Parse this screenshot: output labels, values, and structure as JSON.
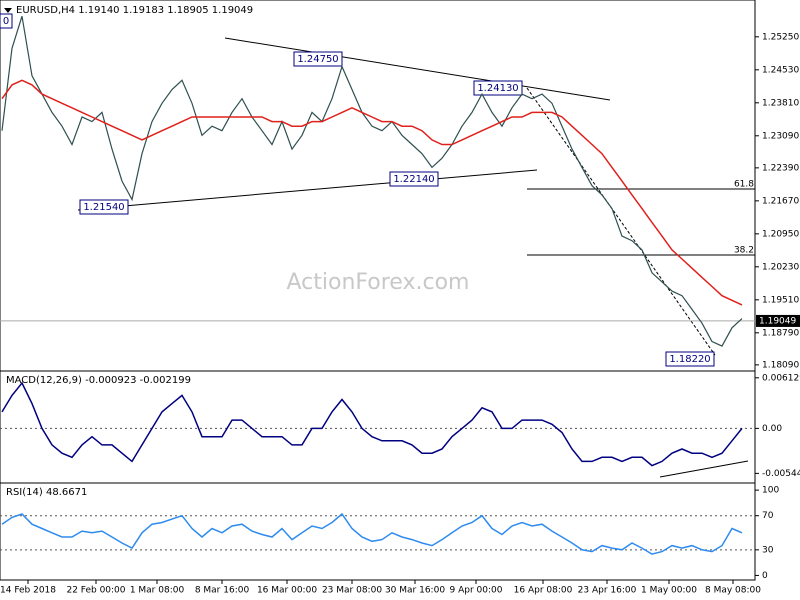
{
  "header": "EURUSD,H4  1.19140 1.19183 1.18905 1.19049",
  "watermark": "ActionForex.com",
  "chart_data": [
    {
      "type": "line",
      "name": "price",
      "current_label": "1.19049",
      "current": 1.19049,
      "annotations": [
        "1.24750",
        "1.24130",
        "1.22140",
        "1.21540",
        "1.18220",
        "0",
        "61.8",
        "38.2"
      ],
      "ylim": [
        1.18,
        1.2601
      ],
      "yticks": [
        {
          "value": 1.2525,
          "label": "1.25250"
        },
        {
          "value": 1.2453,
          "label": "1.24530"
        },
        {
          "value": 1.2381,
          "label": "1.23810"
        },
        {
          "value": 1.2309,
          "label": "1.23090"
        },
        {
          "value": 1.2239,
          "label": "1.22390"
        },
        {
          "value": 1.2167,
          "label": "1.21670"
        },
        {
          "value": 1.2095,
          "label": "1.20950"
        },
        {
          "value": 1.2023,
          "label": "1.20230"
        },
        {
          "value": 1.1951,
          "label": "1.19510"
        },
        {
          "value": 1.1879,
          "label": "1.18790"
        },
        {
          "value": 1.1809,
          "label": "1.18090"
        }
      ],
      "series": [
        {
          "color": "#2f4f4f",
          "values": [
            1.232,
            1.25,
            1.257,
            1.244,
            1.24,
            1.236,
            1.233,
            1.229,
            1.235,
            1.234,
            1.236,
            1.228,
            1.221,
            1.217,
            1.227,
            1.234,
            1.238,
            1.241,
            1.243,
            1.238,
            1.231,
            1.233,
            1.232,
            1.236,
            1.239,
            1.235,
            1.232,
            1.229,
            1.234,
            1.228,
            1.231,
            1.236,
            1.234,
            1.239,
            1.246,
            1.241,
            1.236,
            1.233,
            1.232,
            1.234,
            1.231,
            1.229,
            1.227,
            1.224,
            1.226,
            1.229,
            1.233,
            1.236,
            1.24,
            1.236,
            1.233,
            1.237,
            1.24,
            1.239,
            1.24,
            1.238,
            1.233,
            1.228,
            1.224,
            1.22,
            1.218,
            1.215,
            1.209,
            1.208,
            1.206,
            1.201,
            1.199,
            1.197,
            1.196,
            1.193,
            1.19,
            1.186,
            1.185,
            1.189,
            1.191
          ]
        },
        {
          "color": "#e0201b",
          "values": [
            1.239,
            1.242,
            1.243,
            1.242,
            1.24,
            1.239,
            1.238,
            1.237,
            1.236,
            1.235,
            1.234,
            1.233,
            1.232,
            1.231,
            1.23,
            1.231,
            1.232,
            1.233,
            1.234,
            1.235,
            1.235,
            1.235,
            1.235,
            1.235,
            1.235,
            1.235,
            1.235,
            1.234,
            1.234,
            1.233,
            1.233,
            1.234,
            1.234,
            1.235,
            1.236,
            1.237,
            1.236,
            1.235,
            1.234,
            1.234,
            1.233,
            1.233,
            1.232,
            1.23,
            1.229,
            1.229,
            1.23,
            1.231,
            1.232,
            1.233,
            1.234,
            1.235,
            1.235,
            1.236,
            1.236,
            1.236,
            1.235,
            1.233,
            1.231,
            1.229,
            1.227,
            1.224,
            1.221,
            1.218,
            1.215,
            1.212,
            1.209,
            1.206,
            1.204,
            1.202,
            1.2,
            1.198,
            1.196,
            1.195,
            1.194
          ]
        }
      ]
    },
    {
      "type": "line",
      "name": "macd",
      "title": "MACD(12,26,9) -0.000923 -0.002199",
      "ylim": [
        -0.00637,
        0.00671
      ],
      "yticks": [
        0.006129,
        {
          "value": 0,
          "label": "0.00"
        },
        -0.005448
      ],
      "series": [
        {
          "color": "#000080",
          "values": [
            0.002,
            0.004,
            0.0055,
            0.003,
            0,
            -0.002,
            -0.003,
            -0.0035,
            -0.002,
            -0.001,
            -0.002,
            -0.002,
            -0.003,
            -0.004,
            -0.002,
            0,
            0.002,
            0.003,
            0.004,
            0.002,
            -0.001,
            -0.001,
            -0.001,
            0.001,
            0.001,
            0,
            -0.001,
            -0.001,
            -0.001,
            -0.002,
            -0.002,
            0,
            0,
            0.002,
            0.0035,
            0.002,
            0,
            -0.001,
            -0.0015,
            -0.0015,
            -0.0015,
            -0.002,
            -0.003,
            -0.003,
            -0.0025,
            -0.001,
            0,
            0.001,
            0.0025,
            0.002,
            0,
            0,
            0.001,
            0.001,
            0.001,
            0.0005,
            -0.0005,
            -0.0025,
            -0.004,
            -0.004,
            -0.0035,
            -0.0035,
            -0.004,
            -0.0035,
            -0.0035,
            -0.0045,
            -0.004,
            -0.003,
            -0.0025,
            -0.003,
            -0.003,
            -0.0035,
            -0.003,
            -0.0015,
            0
          ]
        }
      ]
    },
    {
      "type": "line",
      "name": "rsi",
      "title": "RSI(14) 48.6671",
      "ylim": [
        -3,
        106
      ],
      "yticks": [
        100,
        70,
        30,
        0
      ],
      "xlim": [
        0,
        75
      ],
      "xticks": [
        {
          "value": 2.6,
          "label": "14 Feb 2018"
        },
        {
          "value": 9.4,
          "label": "22 Feb 00:00"
        },
        {
          "value": 15.5,
          "label": "1 Mar 08:00"
        },
        {
          "value": 22,
          "label": "8 Mar 16:00"
        },
        {
          "value": 28.5,
          "label": "16 Mar 00:00"
        },
        {
          "value": 35,
          "label": "23 Mar 08:00"
        },
        {
          "value": 41.3,
          "label": "30 Mar 16:00"
        },
        {
          "value": 47.4,
          "label": "9 Apr 00:00"
        },
        {
          "value": 54.1,
          "label": "16 Apr 08:00"
        },
        {
          "value": 60.5,
          "label": "23 Apr 16:00"
        },
        {
          "value": 66.7,
          "label": "1 May 00:00"
        },
        {
          "value": 73.1,
          "label": "8 May 08:00"
        }
      ],
      "series": [
        {
          "color": "#2e8bef",
          "values": [
            60,
            68,
            72,
            60,
            55,
            50,
            45,
            45,
            52,
            50,
            52,
            45,
            38,
            32,
            50,
            60,
            62,
            66,
            70,
            55,
            45,
            55,
            50,
            58,
            60,
            52,
            48,
            45,
            55,
            42,
            50,
            58,
            55,
            62,
            72,
            55,
            45,
            40,
            42,
            50,
            45,
            42,
            38,
            35,
            42,
            50,
            58,
            62,
            70,
            55,
            48,
            58,
            62,
            58,
            60,
            52,
            45,
            38,
            30,
            28,
            35,
            32,
            30,
            38,
            32,
            25,
            28,
            35,
            32,
            35,
            30,
            28,
            35,
            55,
            50
          ]
        }
      ]
    }
  ]
}
